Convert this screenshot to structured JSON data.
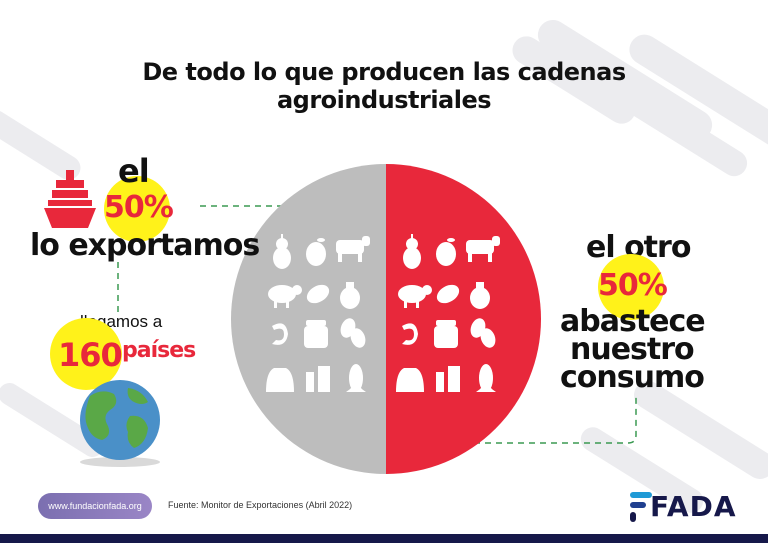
{
  "title": {
    "line1": "De todo lo que producen las cadenas",
    "line2": "agroindustriales"
  },
  "left": {
    "el": "el",
    "percent": "50%",
    "verb": "lo exportamos",
    "reach_prefix": "llegamos a",
    "count": "160",
    "countries": "países"
  },
  "right": {
    "el_otro": "el otro",
    "percent": "50%",
    "line1": "abastece",
    "line2": "nuestro",
    "line3": "consumo"
  },
  "footer": {
    "url": "www.fundacionfada.org",
    "source": "Fuente: Monitor de Exportaciones (Abril 2022)",
    "logo": "FADA"
  },
  "colors": {
    "red": "#e8283b",
    "gray": "#bdbdbd",
    "yellow": "#fff21a",
    "navy": "#16184a",
    "green": "#3b9a52"
  },
  "icons": [
    "pear-icon",
    "lemon-icon",
    "cow-icon",
    "sheep-icon",
    "peanut-icon",
    "oil-bottle-icon",
    "shrimp-icon",
    "honey-jar-icon",
    "beans-icon",
    "flour-sack-icon",
    "milk-icon",
    "corn-icon"
  ]
}
